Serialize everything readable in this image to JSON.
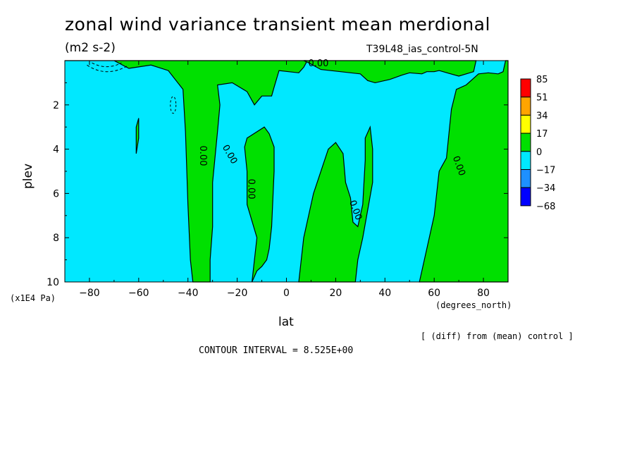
{
  "chart_data": {
    "type": "heatmap",
    "title": "zonal wind variance transient mean merdional",
    "subtitle": "(m2 s-2)",
    "case_label": "T39L48_ias_control-5N",
    "xlabel": "lat",
    "x_unit": "(degrees_north)",
    "ylabel": "plev",
    "y_unit": "(x1E4 Pa)",
    "xlim": [
      -90,
      90
    ],
    "ylim": [
      10,
      0
    ],
    "x_ticks": [
      -80,
      -60,
      -40,
      -20,
      0,
      20,
      40,
      60,
      80
    ],
    "x_tick_labels": [
      "-80",
      "-60",
      "-40",
      "-20",
      "0",
      "20",
      "40",
      "60",
      "80"
    ],
    "y_ticks": [
      2,
      4,
      6,
      8,
      10
    ],
    "y_tick_labels": [
      "2",
      "4",
      "6",
      "8",
      "10"
    ],
    "contour_label": "0.00",
    "contour_interval": "CONTOUR INTERVAL = 8.525E+00",
    "diff_note": "[ (diff) from (mean) control ]",
    "legend": {
      "placement": "right",
      "levels": [
        "85",
        "51",
        "34",
        "17",
        "0",
        "-17",
        "-34",
        "-68"
      ],
      "colors": [
        "#ff0000",
        "#ffa500",
        "#ffff00",
        "#00e000",
        "#00e8ff",
        "#1e90ff",
        "#0000ff"
      ]
    },
    "fill_colors": {
      "positive": "#00e000",
      "negative": "#00e8ff"
    },
    "positive_regions": [
      {
        "name": "nh-high-lat",
        "outline": [
          [
            54,
            10
          ],
          [
            56,
            9
          ],
          [
            58,
            8
          ],
          [
            60,
            7
          ],
          [
            61,
            6
          ],
          [
            62,
            5
          ],
          [
            63,
            4.8
          ],
          [
            65,
            4.4
          ],
          [
            66,
            3.3
          ],
          [
            67,
            2.2
          ],
          [
            69,
            1.3
          ],
          [
            73,
            1.1
          ],
          [
            78,
            0.6
          ],
          [
            82,
            0.55
          ],
          [
            86,
            0.6
          ],
          [
            88,
            0.5
          ],
          [
            89,
            0
          ],
          [
            90,
            0
          ],
          [
            90,
            10
          ]
        ]
      },
      {
        "name": "sh-mid-lat-band",
        "outline": [
          [
            -90,
            0
          ],
          [
            -70,
            0
          ],
          [
            -64,
            0.35
          ],
          [
            -55,
            0.2
          ],
          [
            -48,
            0.45
          ],
          [
            -42,
            1.3
          ],
          [
            -41,
            3.2
          ],
          [
            -40,
            6.5
          ],
          [
            -39,
            9.0
          ],
          [
            -38,
            10
          ],
          [
            -31,
            10
          ],
          [
            -31,
            9.0
          ],
          [
            -30,
            7.5
          ],
          [
            -30,
            5.5
          ],
          [
            -28,
            3.2
          ],
          [
            -27,
            2.0
          ],
          [
            -28,
            1.1
          ],
          [
            -22,
            1.0
          ],
          [
            -16,
            1.4
          ],
          [
            -13,
            2.0
          ],
          [
            -10,
            1.6
          ],
          [
            -6,
            1.6
          ],
          [
            -5,
            1.2
          ],
          [
            -3,
            0.45
          ],
          [
            5,
            0.55
          ],
          [
            7,
            0.3
          ],
          [
            8,
            0.1
          ],
          [
            8,
            0
          ],
          [
            -90,
            0
          ]
        ]
      },
      {
        "name": "equatorial-column",
        "outline": [
          [
            -14,
            10
          ],
          [
            -13,
            9.0
          ],
          [
            -12,
            8.0
          ],
          [
            -16,
            6.5
          ],
          [
            -16,
            5.0
          ],
          [
            -17,
            3.9
          ],
          [
            -16,
            3.5
          ],
          [
            -9,
            3.0
          ],
          [
            -7,
            3.3
          ],
          [
            -5,
            3.9
          ],
          [
            -5,
            5.0
          ],
          [
            -6,
            7.5
          ],
          [
            -7,
            8.5
          ],
          [
            -8,
            9.0
          ],
          [
            -10,
            9.3
          ],
          [
            -12,
            9.5
          ],
          [
            -14,
            10
          ]
        ]
      },
      {
        "name": "ne-tropics-column",
        "outline": [
          [
            5,
            10
          ],
          [
            7,
            8.0
          ],
          [
            11,
            6.0
          ],
          [
            17,
            4.0
          ],
          [
            20,
            3.7
          ],
          [
            23,
            4.2
          ],
          [
            24,
            5.5
          ],
          [
            26,
            6.2
          ],
          [
            27,
            7.3
          ],
          [
            29,
            7.5
          ],
          [
            31,
            6.5
          ],
          [
            32,
            4.5
          ],
          [
            32,
            3.5
          ],
          [
            34,
            3.0
          ],
          [
            35,
            4.0
          ],
          [
            35,
            5.5
          ],
          [
            31,
            8.0
          ],
          [
            29,
            9.0
          ],
          [
            28,
            10
          ],
          [
            5,
            10
          ]
        ]
      },
      {
        "name": "nh-upper-tongue",
        "outline": [
          [
            7,
            0
          ],
          [
            9,
            0.1
          ],
          [
            14,
            0.4
          ],
          [
            22,
            0.5
          ],
          [
            30,
            0.6
          ],
          [
            33,
            0.9
          ],
          [
            36,
            1.0
          ],
          [
            42,
            0.85
          ],
          [
            47,
            0.65
          ],
          [
            50,
            0.55
          ],
          [
            55,
            0.6
          ],
          [
            57,
            0.5
          ],
          [
            60,
            0.5
          ],
          [
            62,
            0.45
          ],
          [
            70,
            0.7
          ],
          [
            76,
            0.5
          ],
          [
            77,
            0
          ],
          [
            7,
            0
          ]
        ]
      },
      {
        "name": "sh-thin-sliver",
        "outline": [
          [
            -61,
            4.2
          ],
          [
            -60,
            3.5
          ],
          [
            -60,
            2.8
          ],
          [
            -60,
            2.6
          ],
          [
            -61,
            3.0
          ],
          [
            -61,
            4.2
          ]
        ]
      }
    ]
  }
}
